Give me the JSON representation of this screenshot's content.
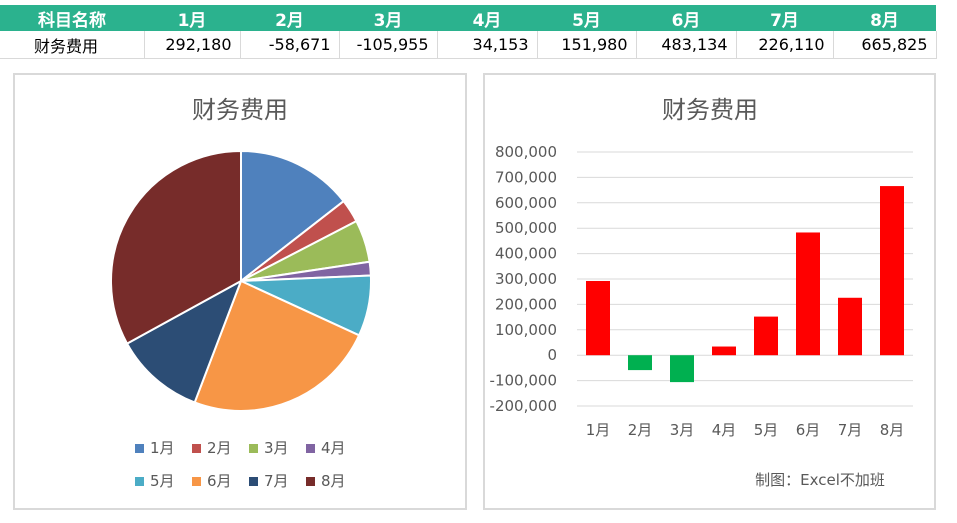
{
  "table": {
    "header_label": "科目名称",
    "row_label": "财务费用",
    "months": [
      "1月",
      "2月",
      "3月",
      "4月",
      "5月",
      "6月",
      "7月",
      "8月"
    ],
    "values_text": [
      "292,180",
      "-58,671",
      "-105,955",
      "34,153",
      "151,980",
      "483,134",
      "226,110",
      "665,825"
    ]
  },
  "chart_data": [
    {
      "type": "pie",
      "title": "财务费用",
      "categories": [
        "1月",
        "2月",
        "3月",
        "4月",
        "5月",
        "6月",
        "7月",
        "8月"
      ],
      "values": [
        292180,
        58671,
        105955,
        34153,
        151980,
        483134,
        226110,
        665825
      ],
      "colors": [
        "#4f81bd",
        "#c0504d",
        "#9bbb59",
        "#8064a2",
        "#4bacc6",
        "#f79646",
        "#2c4d75",
        "#772c2a"
      ],
      "legend_position": "bottom"
    },
    {
      "type": "bar",
      "title": "财务费用",
      "categories": [
        "1月",
        "2月",
        "3月",
        "4月",
        "5月",
        "6月",
        "7月",
        "8月"
      ],
      "values": [
        292180,
        -58671,
        -105955,
        34153,
        151980,
        483134,
        226110,
        665825
      ],
      "ylim": [
        -200000,
        800000
      ],
      "yticks": [
        "800,000",
        "700,000",
        "600,000",
        "500,000",
        "400,000",
        "300,000",
        "200,000",
        "100,000",
        "0",
        "-100,000",
        "-200,000"
      ],
      "positive_color": "#ff0000",
      "negative_color": "#00b050",
      "grid": true
    }
  ],
  "credit": "制图：Excel不加班"
}
